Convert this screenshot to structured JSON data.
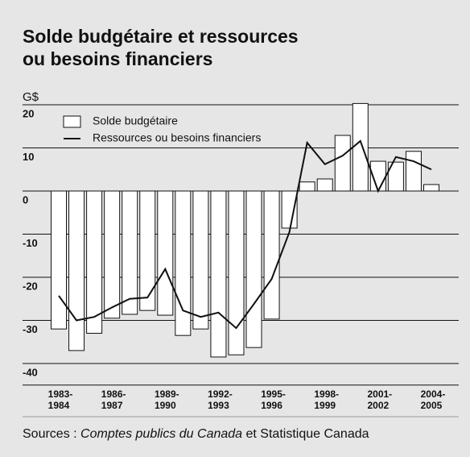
{
  "chart_data": {
    "type": "bar-line",
    "title": [
      "Solde budgétaire et ressources",
      "ou besoins financiers"
    ],
    "y_label": "G$",
    "categories": [
      [
        "1983-",
        "1984"
      ],
      null,
      null,
      [
        "1986-",
        "1987"
      ],
      null,
      null,
      [
        "1989-",
        "1990"
      ],
      null,
      null,
      [
        "1992-",
        "1993"
      ],
      null,
      null,
      [
        "1995-",
        "1996"
      ],
      null,
      null,
      [
        "1998-",
        "1999"
      ],
      null,
      null,
      [
        "2001-",
        "2002"
      ],
      null,
      null,
      [
        "2004-",
        "2005"
      ]
    ],
    "series": [
      {
        "name": "Solde budgétaire",
        "kind": "bar",
        "color": "#ffffff",
        "values": [
          -32,
          -37,
          -33,
          -29.5,
          -28.6,
          -27.7,
          -28.8,
          -33.5,
          -32,
          -38.5,
          -38,
          -36.3,
          -29.7,
          -8.6,
          2.1,
          2.8,
          12.9,
          20.3,
          6.9,
          6.7,
          9.2,
          1.5
        ]
      },
      {
        "name": "Ressources ou besoins financiers",
        "kind": "line",
        "color": "#111111",
        "values": [
          -24.3,
          -30,
          -29.2,
          -27,
          -25,
          -24.7,
          -18.1,
          -27.7,
          -29.2,
          -28.2,
          -31.8,
          -26.2,
          -20.4,
          -9.5,
          11.2,
          6.2,
          8.2,
          11.6,
          0,
          7.9,
          6.9,
          5
        ]
      }
    ],
    "ylim": [
      -45,
      22
    ],
    "yticks": [
      20,
      10,
      0,
      -10,
      -20,
      -30,
      -40
    ],
    "grid": true,
    "legend": "upper-left",
    "source": {
      "prefix": "Sources :",
      "italic": "Comptes publics du Canada",
      "suffix": "et Statistique Canada"
    }
  }
}
